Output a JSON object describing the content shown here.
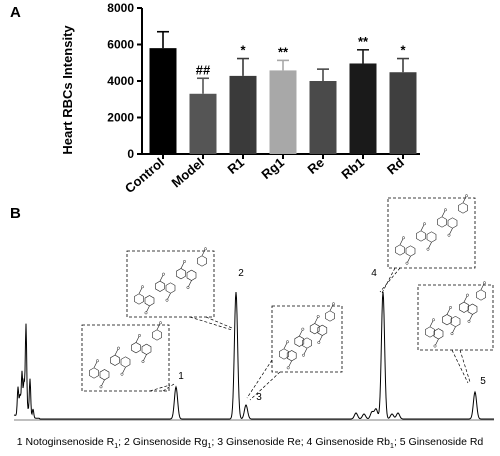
{
  "panels": {
    "a_letter": "A",
    "b_letter": "B"
  },
  "chart_data": [
    {
      "type": "bar",
      "title": "",
      "xlabel": "",
      "ylabel": "Heart RBCs Intensity",
      "ylim": [
        0,
        8000
      ],
      "yticks": [
        0,
        2000,
        4000,
        6000,
        8000
      ],
      "categories": [
        "Control",
        "Model",
        "R1",
        "Rg1",
        "Re",
        "Rb1",
        "Rd"
      ],
      "values": [
        5800,
        3300,
        4280,
        4580,
        4000,
        4960,
        4480
      ],
      "errors": [
        900,
        850,
        950,
        550,
        650,
        750,
        750
      ],
      "significance": [
        "",
        "##",
        "*",
        "**",
        "",
        "**",
        "*"
      ],
      "colors": [
        "#000000",
        "#555555",
        "#3a3a3a",
        "#a8a8a8",
        "#4a4a4a",
        "#1a1a1a",
        "#3f3f3f"
      ]
    },
    {
      "type": "line",
      "title": "",
      "xlabel": "",
      "ylabel": "",
      "peaks": [
        {
          "label": "1"
        },
        {
          "label": "2"
        },
        {
          "label": "3"
        },
        {
          "label": "4"
        },
        {
          "label": "5"
        }
      ],
      "caption": [
        {
          "num": "1",
          "name": "Notoginsenoside R",
          "sub": "1"
        },
        {
          "num": "2",
          "name": "Ginsenoside Rg",
          "sub": "1"
        },
        {
          "num": "3",
          "name": "Ginsenoside Re",
          "sub": ""
        },
        {
          "num": "4",
          "name": "Ginsenoside Rb",
          "sub": "1"
        },
        {
          "num": "5",
          "name": "Ginsenoside Rd",
          "sub": ""
        }
      ]
    }
  ]
}
